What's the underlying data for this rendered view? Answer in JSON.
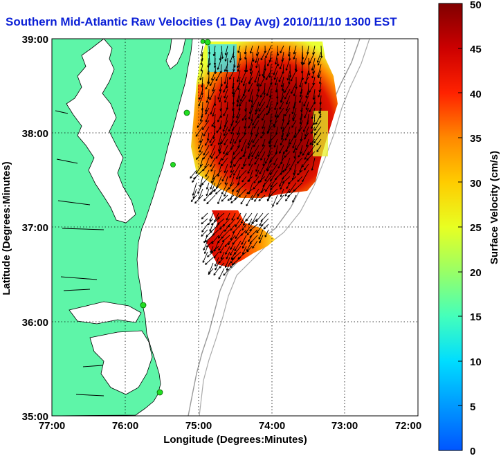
{
  "title": "Southern Mid-Atlantic Raw Velocities (1 Day Avg) 2010/11/10 1300 EST",
  "x_axis": {
    "label": "Longitude (Degrees:Minutes)",
    "ticks": [
      "77:00",
      "76:00",
      "75:00",
      "74:00",
      "73:00",
      "72:00"
    ]
  },
  "y_axis": {
    "label": "Latitude (Degrees:Minutes)",
    "ticks": [
      "35:00",
      "36:00",
      "37:00",
      "38:00",
      "39:00"
    ]
  },
  "colorbar": {
    "label": "Surface Velocity (cm/s)",
    "ticks": [
      "0",
      "5",
      "10",
      "15",
      "20",
      "25",
      "30",
      "35",
      "40",
      "45",
      "50"
    ],
    "min": 0,
    "max": 50
  },
  "map": {
    "extent": {
      "lon_min": -77,
      "lon_max": -72,
      "lat_min": 35,
      "lat_max": 39
    },
    "grid": "dotted",
    "land_color": "#5ef5a8",
    "water_color": "#ffffff",
    "coastline_color": "#000000",
    "bathymetry_color": "#999999",
    "arrow_color": "#000000",
    "station_color": "#22dd22"
  }
}
